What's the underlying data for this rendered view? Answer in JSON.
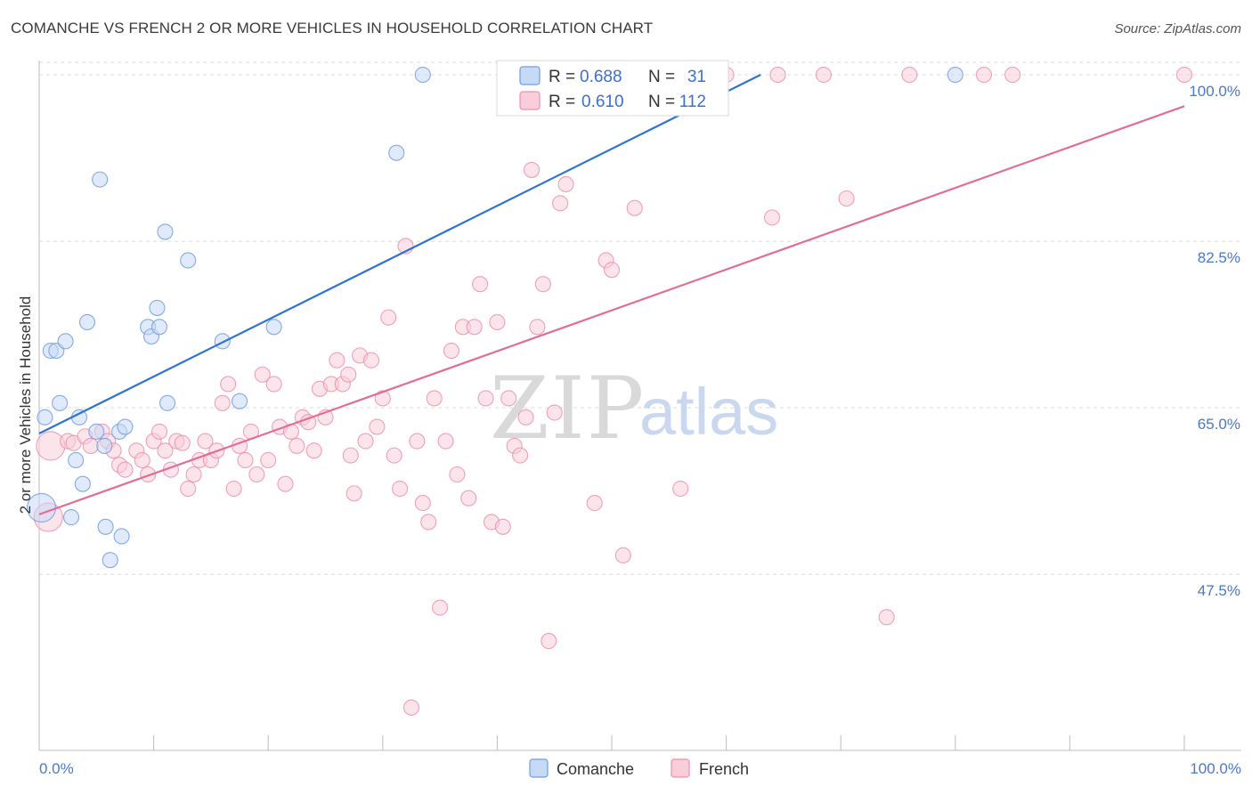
{
  "header": {
    "title": "COMANCHE VS FRENCH 2 OR MORE VEHICLES IN HOUSEHOLD CORRELATION CHART",
    "source": "Source: ZipAtlas.com"
  },
  "watermark": {
    "zip": "ZIP",
    "atlas": "atlas"
  },
  "colors": {
    "comanche_fill": "#c6d9f5",
    "comanche_stroke": "#6f9ee0",
    "comanche_line": "#2f74d0",
    "french_fill": "#f9cdda",
    "french_stroke": "#ee8fad",
    "french_line": "#e26d97",
    "grid": "#dcdcdc",
    "axis_label": "#4a78c8"
  },
  "legend": {
    "r_label": "R =",
    "n_label": "N =",
    "comanche": {
      "r": "0.688",
      "n": "31"
    },
    "french": {
      "r": "0.610",
      "n": "112"
    }
  },
  "chart_data": {
    "type": "scatter",
    "title": "COMANCHE VS FRENCH 2 OR MORE VEHICLES IN HOUSEHOLD CORRELATION CHART",
    "xlabel": "",
    "ylabel": "2 or more Vehicles in Household",
    "xlim": [
      0,
      100
    ],
    "ylim": [
      29,
      101.5
    ],
    "x_tick_labels": {
      "left": "0.0%",
      "right": "100.0%"
    },
    "y_ticks": [
      {
        "value": 47.5,
        "label": "47.5%"
      },
      {
        "value": 65.0,
        "label": "65.0%"
      },
      {
        "value": 82.5,
        "label": "82.5%"
      },
      {
        "value": 100.0,
        "label": "100.0%"
      }
    ],
    "grid": true,
    "legend_position": "top-center",
    "series": [
      {
        "name": "Comanche",
        "trend": {
          "x": [
            0,
            63
          ],
          "y": [
            62.3,
            100.0
          ]
        },
        "points": [
          {
            "x": 0.2,
            "y": 54.5,
            "s": "big"
          },
          {
            "x": 0.5,
            "y": 64.0
          },
          {
            "x": 1.0,
            "y": 71.0
          },
          {
            "x": 1.5,
            "y": 71.0
          },
          {
            "x": 1.8,
            "y": 65.5
          },
          {
            "x": 2.3,
            "y": 72.0
          },
          {
            "x": 2.8,
            "y": 53.5
          },
          {
            "x": 3.2,
            "y": 59.5
          },
          {
            "x": 3.5,
            "y": 64.0
          },
          {
            "x": 3.8,
            "y": 57.0
          },
          {
            "x": 4.2,
            "y": 74.0
          },
          {
            "x": 5.0,
            "y": 62.5
          },
          {
            "x": 5.3,
            "y": 89.0
          },
          {
            "x": 5.7,
            "y": 61.0
          },
          {
            "x": 5.8,
            "y": 52.5
          },
          {
            "x": 6.2,
            "y": 49.0
          },
          {
            "x": 7.0,
            "y": 62.5
          },
          {
            "x": 7.2,
            "y": 51.5
          },
          {
            "x": 7.5,
            "y": 63.0
          },
          {
            "x": 9.5,
            "y": 73.5
          },
          {
            "x": 9.8,
            "y": 72.5
          },
          {
            "x": 10.3,
            "y": 75.5
          },
          {
            "x": 10.5,
            "y": 73.5
          },
          {
            "x": 11.0,
            "y": 83.5
          },
          {
            "x": 11.2,
            "y": 65.5
          },
          {
            "x": 13.0,
            "y": 80.5
          },
          {
            "x": 16.0,
            "y": 72.0
          },
          {
            "x": 17.5,
            "y": 65.7
          },
          {
            "x": 20.5,
            "y": 73.5
          },
          {
            "x": 33.5,
            "y": 100.0
          },
          {
            "x": 31.2,
            "y": 91.8
          },
          {
            "x": 80.0,
            "y": 100.0
          }
        ]
      },
      {
        "name": "French",
        "trend": {
          "x": [
            0,
            100
          ],
          "y": [
            53.8,
            96.7
          ]
        },
        "points": [
          {
            "x": 1.0,
            "y": 61.0,
            "s": "big"
          },
          {
            "x": 0.8,
            "y": 53.5,
            "s": "big"
          },
          {
            "x": 2.5,
            "y": 61.5
          },
          {
            "x": 3.0,
            "y": 61.3
          },
          {
            "x": 4.0,
            "y": 62.0
          },
          {
            "x": 4.5,
            "y": 61.0
          },
          {
            "x": 5.5,
            "y": 62.5
          },
          {
            "x": 6.0,
            "y": 61.5
          },
          {
            "x": 6.5,
            "y": 60.5
          },
          {
            "x": 7.0,
            "y": 59.0
          },
          {
            "x": 7.5,
            "y": 58.5
          },
          {
            "x": 8.5,
            "y": 60.5
          },
          {
            "x": 9.0,
            "y": 59.5
          },
          {
            "x": 9.5,
            "y": 58.0
          },
          {
            "x": 10.0,
            "y": 61.5
          },
          {
            "x": 10.5,
            "y": 62.5
          },
          {
            "x": 11.0,
            "y": 60.5
          },
          {
            "x": 11.5,
            "y": 58.5
          },
          {
            "x": 12.0,
            "y": 61.5
          },
          {
            "x": 12.5,
            "y": 61.3
          },
          {
            "x": 13.0,
            "y": 56.5
          },
          {
            "x": 13.5,
            "y": 58.0
          },
          {
            "x": 14.0,
            "y": 59.5
          },
          {
            "x": 14.5,
            "y": 61.5
          },
          {
            "x": 15.0,
            "y": 59.5
          },
          {
            "x": 15.5,
            "y": 60.5
          },
          {
            "x": 16.0,
            "y": 65.5
          },
          {
            "x": 16.5,
            "y": 67.5
          },
          {
            "x": 17.0,
            "y": 56.5
          },
          {
            "x": 17.5,
            "y": 61.0
          },
          {
            "x": 18.0,
            "y": 59.5
          },
          {
            "x": 18.5,
            "y": 62.5
          },
          {
            "x": 19.0,
            "y": 58.0
          },
          {
            "x": 19.5,
            "y": 68.5
          },
          {
            "x": 20.0,
            "y": 59.5
          },
          {
            "x": 20.5,
            "y": 67.5
          },
          {
            "x": 21.0,
            "y": 63.0
          },
          {
            "x": 21.5,
            "y": 57.0
          },
          {
            "x": 22.0,
            "y": 62.5
          },
          {
            "x": 22.5,
            "y": 61.0
          },
          {
            "x": 23.0,
            "y": 64.0
          },
          {
            "x": 23.5,
            "y": 63.5
          },
          {
            "x": 24.0,
            "y": 60.5
          },
          {
            "x": 24.5,
            "y": 67.0
          },
          {
            "x": 25.0,
            "y": 64.0
          },
          {
            "x": 25.5,
            "y": 67.5
          },
          {
            "x": 26.0,
            "y": 70.0
          },
          {
            "x": 26.5,
            "y": 67.5
          },
          {
            "x": 27.0,
            "y": 68.5
          },
          {
            "x": 27.5,
            "y": 56.0
          },
          {
            "x": 28.0,
            "y": 70.5
          },
          {
            "x": 28.5,
            "y": 61.5
          },
          {
            "x": 29.0,
            "y": 70.0
          },
          {
            "x": 29.5,
            "y": 63.0
          },
          {
            "x": 30.0,
            "y": 66.0
          },
          {
            "x": 30.5,
            "y": 74.5
          },
          {
            "x": 31.0,
            "y": 60.0
          },
          {
            "x": 31.5,
            "y": 56.5
          },
          {
            "x": 32.0,
            "y": 82.0
          },
          {
            "x": 33.0,
            "y": 61.5
          },
          {
            "x": 33.5,
            "y": 55.0
          },
          {
            "x": 34.0,
            "y": 53.0
          },
          {
            "x": 34.5,
            "y": 66.0
          },
          {
            "x": 35.0,
            "y": 44.0
          },
          {
            "x": 35.5,
            "y": 61.5
          },
          {
            "x": 36.0,
            "y": 71.0
          },
          {
            "x": 36.5,
            "y": 58.0
          },
          {
            "x": 37.0,
            "y": 73.5
          },
          {
            "x": 37.5,
            "y": 55.5
          },
          {
            "x": 38.0,
            "y": 73.5
          },
          {
            "x": 38.5,
            "y": 78.0
          },
          {
            "x": 39.0,
            "y": 66.0
          },
          {
            "x": 39.5,
            "y": 53.0
          },
          {
            "x": 40.0,
            "y": 74.0
          },
          {
            "x": 40.5,
            "y": 52.5
          },
          {
            "x": 41.0,
            "y": 66.0
          },
          {
            "x": 41.5,
            "y": 61.0
          },
          {
            "x": 42.0,
            "y": 60.0
          },
          {
            "x": 42.5,
            "y": 64.0
          },
          {
            "x": 43.0,
            "y": 90.0
          },
          {
            "x": 43.5,
            "y": 73.5
          },
          {
            "x": 44.0,
            "y": 78.0
          },
          {
            "x": 44.5,
            "y": 40.5
          },
          {
            "x": 45.0,
            "y": 64.5
          },
          {
            "x": 45.5,
            "y": 86.5
          },
          {
            "x": 46.0,
            "y": 88.5
          },
          {
            "x": 47.0,
            "y": 100.0
          },
          {
            "x": 48.5,
            "y": 55.0
          },
          {
            "x": 49.5,
            "y": 80.5
          },
          {
            "x": 50.0,
            "y": 79.5
          },
          {
            "x": 51.0,
            "y": 49.5
          },
          {
            "x": 52.0,
            "y": 86.0
          },
          {
            "x": 53.0,
            "y": 100.0
          },
          {
            "x": 55.5,
            "y": 100.0
          },
          {
            "x": 56.0,
            "y": 56.5
          },
          {
            "x": 64.0,
            "y": 85.0
          },
          {
            "x": 64.5,
            "y": 100.0
          },
          {
            "x": 68.5,
            "y": 100.0
          },
          {
            "x": 70.5,
            "y": 87.0
          },
          {
            "x": 74.0,
            "y": 43.0
          },
          {
            "x": 76.0,
            "y": 100.0
          },
          {
            "x": 82.5,
            "y": 100.0
          },
          {
            "x": 85.0,
            "y": 100.0
          },
          {
            "x": 100.0,
            "y": 100.0
          },
          {
            "x": 32.5,
            "y": 33.5
          },
          {
            "x": 60.0,
            "y": 100.0
          },
          {
            "x": 58.0,
            "y": 100.0
          },
          {
            "x": 27.2,
            "y": 60.0
          }
        ]
      }
    ]
  },
  "bottom_legend": {
    "comanche": "Comanche",
    "french": "French"
  }
}
